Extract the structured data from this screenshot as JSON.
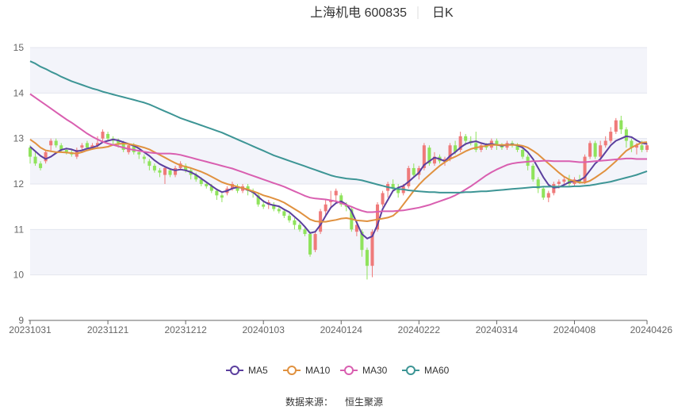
{
  "header": {
    "stock_name": "上海机电 600835",
    "period": "日K"
  },
  "source": {
    "label": "数据来源：",
    "provider": "恒生聚源"
  },
  "chart_data": {
    "type": "candlestick",
    "y_ticks": [
      "9",
      "10",
      "11",
      "12",
      "13",
      "14",
      "15"
    ],
    "ylim": [
      9,
      15
    ],
    "x_ticks": [
      "20231031",
      "20231121",
      "20231212",
      "20240103",
      "20240124",
      "20240222",
      "20240314",
      "20240408",
      "20240426"
    ],
    "x_tick_index": [
      0,
      15,
      30,
      45,
      60,
      75,
      90,
      105,
      119
    ],
    "grid": true,
    "legend_position": "bottom",
    "colors": {
      "up": "#ef7a7a",
      "down": "#8fe35c",
      "ma5": "#5b3f9e",
      "ma10": "#e0913f",
      "ma30": "#d95fb0",
      "ma60": "#3d9595",
      "band": "#f3f4fa",
      "grid": "#e3e6ef"
    },
    "candles": [
      [
        12.8,
        12.6,
        12.85,
        12.45
      ],
      [
        12.6,
        12.45,
        12.7,
        12.4
      ],
      [
        12.45,
        12.35,
        12.5,
        12.3
      ],
      [
        12.5,
        12.7,
        12.75,
        12.45
      ],
      [
        12.85,
        12.95,
        13.0,
        12.7
      ],
      [
        12.95,
        12.85,
        13.0,
        12.8
      ],
      [
        12.85,
        12.75,
        12.9,
        12.7
      ],
      [
        12.75,
        12.7,
        12.8,
        12.65
      ],
      [
        12.7,
        12.65,
        12.75,
        12.6
      ],
      [
        12.6,
        12.75,
        12.8,
        12.55
      ],
      [
        12.8,
        12.85,
        12.9,
        12.75
      ],
      [
        12.9,
        12.8,
        12.95,
        12.75
      ],
      [
        12.8,
        12.85,
        12.9,
        12.75
      ],
      [
        12.85,
        12.9,
        13.05,
        12.8
      ],
      [
        13.0,
        13.15,
        13.2,
        12.95
      ],
      [
        13.1,
        13.0,
        13.15,
        12.95
      ],
      [
        13.0,
        12.95,
        13.05,
        12.85
      ],
      [
        12.95,
        12.9,
        13.0,
        12.8
      ],
      [
        12.9,
        12.75,
        12.95,
        12.7
      ],
      [
        12.7,
        12.85,
        12.9,
        12.65
      ],
      [
        12.85,
        12.7,
        12.9,
        12.65
      ],
      [
        12.7,
        12.65,
        12.75,
        12.55
      ],
      [
        12.6,
        12.55,
        12.65,
        12.45
      ],
      [
        12.5,
        12.4,
        12.55,
        12.3
      ],
      [
        12.4,
        12.3,
        12.45,
        12.25
      ],
      [
        12.3,
        12.25,
        12.35,
        12.15
      ],
      [
        12.2,
        12.35,
        12.4,
        12.0
      ],
      [
        12.3,
        12.2,
        12.35,
        12.15
      ],
      [
        12.2,
        12.35,
        12.4,
        12.15
      ],
      [
        12.35,
        12.45,
        12.5,
        12.3
      ],
      [
        12.4,
        12.3,
        12.45,
        12.25
      ],
      [
        12.3,
        12.2,
        12.35,
        12.1
      ],
      [
        12.2,
        12.1,
        12.25,
        12.05
      ],
      [
        12.1,
        12.0,
        12.15,
        11.95
      ],
      [
        12.0,
        11.95,
        12.05,
        11.9
      ],
      [
        11.95,
        11.85,
        12.0,
        11.8
      ],
      [
        11.85,
        11.75,
        11.9,
        11.65
      ],
      [
        11.75,
        11.7,
        11.8,
        11.6
      ],
      [
        11.8,
        11.9,
        11.95,
        11.75
      ],
      [
        11.9,
        12.0,
        12.05,
        11.85
      ],
      [
        11.95,
        11.85,
        12.0,
        11.8
      ],
      [
        11.85,
        11.95,
        12.0,
        11.8
      ],
      [
        11.95,
        11.85,
        12.0,
        11.75
      ],
      [
        11.85,
        11.8,
        11.9,
        11.7
      ],
      [
        11.75,
        11.55,
        11.8,
        11.5
      ],
      [
        11.55,
        11.5,
        11.65,
        11.45
      ],
      [
        11.55,
        11.6,
        11.65,
        11.45
      ],
      [
        11.55,
        11.45,
        11.6,
        11.4
      ],
      [
        11.45,
        11.4,
        11.5,
        11.35
      ],
      [
        11.4,
        11.3,
        11.45,
        11.25
      ],
      [
        11.3,
        11.2,
        11.35,
        11.15
      ],
      [
        11.2,
        11.1,
        11.25,
        11.0
      ],
      [
        11.1,
        11.0,
        11.15,
        10.95
      ],
      [
        11.0,
        10.9,
        11.05,
        10.85
      ],
      [
        10.9,
        10.45,
        10.95,
        10.4
      ],
      [
        10.55,
        10.9,
        10.95,
        10.5
      ],
      [
        10.95,
        11.4,
        11.45,
        10.9
      ],
      [
        11.4,
        11.55,
        11.65,
        11.3
      ],
      [
        11.6,
        11.65,
        11.85,
        11.5
      ],
      [
        11.75,
        11.85,
        11.9,
        11.6
      ],
      [
        11.75,
        11.55,
        11.8,
        11.5
      ],
      [
        11.55,
        11.5,
        11.6,
        11.4
      ],
      [
        11.45,
        11.0,
        11.5,
        10.95
      ],
      [
        10.95,
        11.1,
        11.2,
        10.85
      ],
      [
        10.95,
        10.55,
        11.0,
        10.4
      ],
      [
        10.55,
        10.2,
        10.6,
        9.9
      ],
      [
        10.2,
        10.95,
        11.0,
        9.95
      ],
      [
        11.0,
        11.55,
        11.6,
        10.95
      ],
      [
        11.55,
        11.8,
        11.85,
        11.5
      ],
      [
        11.85,
        12.0,
        12.05,
        11.7
      ],
      [
        12.0,
        11.9,
        12.1,
        11.85
      ],
      [
        11.9,
        11.8,
        12.0,
        11.7
      ],
      [
        11.8,
        11.95,
        12.0,
        11.75
      ],
      [
        11.95,
        12.35,
        12.4,
        11.9
      ],
      [
        12.35,
        12.2,
        12.45,
        12.15
      ],
      [
        12.2,
        12.35,
        12.4,
        12.1
      ],
      [
        12.35,
        12.85,
        12.9,
        12.3
      ],
      [
        12.8,
        12.45,
        12.85,
        12.4
      ],
      [
        12.45,
        12.6,
        12.7,
        12.4
      ],
      [
        12.6,
        12.5,
        12.65,
        12.45
      ],
      [
        12.5,
        12.55,
        12.6,
        12.4
      ],
      [
        12.55,
        12.85,
        12.9,
        12.5
      ],
      [
        12.85,
        12.7,
        12.95,
        12.65
      ],
      [
        12.75,
        13.05,
        13.15,
        12.7
      ],
      [
        13.05,
        12.95,
        13.1,
        12.85
      ],
      [
        12.95,
        12.9,
        13.05,
        12.85
      ],
      [
        12.9,
        12.75,
        13.15,
        12.7
      ],
      [
        12.75,
        12.85,
        12.9,
        12.7
      ],
      [
        12.85,
        12.8,
        12.9,
        12.75
      ],
      [
        12.8,
        12.95,
        13.0,
        12.75
      ],
      [
        12.95,
        12.85,
        13.0,
        12.75
      ],
      [
        12.85,
        12.8,
        12.9,
        12.75
      ],
      [
        12.8,
        12.9,
        12.95,
        12.75
      ],
      [
        12.9,
        12.85,
        12.95,
        12.8
      ],
      [
        12.85,
        12.75,
        12.9,
        12.7
      ],
      [
        12.75,
        12.6,
        12.8,
        12.55
      ],
      [
        12.6,
        12.4,
        12.65,
        12.3
      ],
      [
        12.4,
        12.1,
        12.45,
        12.05
      ],
      [
        12.1,
        11.9,
        12.15,
        11.8
      ],
      [
        11.9,
        11.7,
        11.95,
        11.65
      ],
      [
        11.7,
        11.8,
        11.85,
        11.6
      ],
      [
        11.8,
        12.0,
        12.05,
        11.75
      ],
      [
        12.0,
        12.05,
        12.1,
        11.9
      ],
      [
        12.05,
        12.1,
        12.15,
        12.0
      ],
      [
        12.1,
        12.0,
        12.2,
        11.95
      ],
      [
        12.0,
        12.1,
        12.15,
        11.95
      ],
      [
        12.1,
        12.05,
        12.2,
        12.0
      ],
      [
        12.05,
        12.6,
        12.65,
        12.0
      ],
      [
        12.6,
        12.9,
        12.95,
        12.55
      ],
      [
        12.9,
        12.6,
        12.95,
        12.55
      ],
      [
        12.6,
        12.85,
        12.95,
        12.55
      ],
      [
        12.85,
        12.95,
        13.05,
        12.8
      ],
      [
        12.95,
        13.15,
        13.25,
        12.9
      ],
      [
        13.15,
        13.4,
        13.45,
        13.1
      ],
      [
        13.4,
        13.2,
        13.5,
        13.1
      ],
      [
        13.2,
        12.95,
        13.25,
        12.8
      ],
      [
        12.95,
        12.8,
        13.0,
        12.7
      ],
      [
        12.8,
        12.85,
        12.9,
        12.65
      ],
      [
        12.85,
        12.75,
        12.95,
        12.7
      ],
      [
        12.75,
        12.85,
        12.9,
        12.7
      ]
    ],
    "series": [
      {
        "name": "MA5",
        "values": [
          12.82,
          12.72,
          12.62,
          12.55,
          12.6,
          12.68,
          12.75,
          12.78,
          12.76,
          12.72,
          12.74,
          12.78,
          12.8,
          12.84,
          12.92,
          12.95,
          12.98,
          12.96,
          12.92,
          12.88,
          12.84,
          12.78,
          12.7,
          12.62,
          12.52,
          12.44,
          12.38,
          12.33,
          12.3,
          12.32,
          12.3,
          12.26,
          12.2,
          12.12,
          12.04,
          11.96,
          11.88,
          11.82,
          11.85,
          11.9,
          11.93,
          11.91,
          11.87,
          11.82,
          11.72,
          11.62,
          11.56,
          11.53,
          11.51,
          11.44,
          11.38,
          11.28,
          11.18,
          11.06,
          10.92,
          10.95,
          11.1,
          11.3,
          11.48,
          11.58,
          11.62,
          11.55,
          11.4,
          11.15,
          10.9,
          10.8,
          10.85,
          11.1,
          11.45,
          11.65,
          11.85,
          11.92,
          11.96,
          12.05,
          12.15,
          12.25,
          12.42,
          12.5,
          12.58,
          12.55,
          12.5,
          12.62,
          12.7,
          12.8,
          12.88,
          12.92,
          12.94,
          12.9,
          12.87,
          12.88,
          12.86,
          12.84,
          12.86,
          12.87,
          12.85,
          12.8,
          12.7,
          12.55,
          12.35,
          12.15,
          11.98,
          11.92,
          11.93,
          11.98,
          12.04,
          12.06,
          12.08,
          12.15,
          12.3,
          12.45,
          12.55,
          12.7,
          12.85,
          12.95,
          13.0,
          13.05,
          13.03,
          12.96,
          12.9,
          12.88
        ]
      },
      {
        "name": "MA10",
        "values": [
          12.98,
          12.9,
          12.8,
          12.74,
          12.72,
          12.7,
          12.7,
          12.69,
          12.68,
          12.67,
          12.7,
          12.74,
          12.77,
          12.79,
          12.8,
          12.82,
          12.86,
          12.88,
          12.89,
          12.88,
          12.86,
          12.83,
          12.8,
          12.76,
          12.7,
          12.64,
          12.58,
          12.52,
          12.46,
          12.41,
          12.38,
          12.35,
          12.31,
          12.27,
          12.22,
          12.16,
          12.1,
          12.04,
          12.0,
          11.97,
          11.94,
          11.91,
          11.88,
          11.84,
          11.8,
          11.75,
          11.72,
          11.68,
          11.64,
          11.59,
          11.52,
          11.45,
          11.38,
          11.3,
          11.22,
          11.18,
          11.17,
          11.17,
          11.19,
          11.21,
          11.24,
          11.25,
          11.23,
          11.2,
          11.19,
          11.18,
          11.2,
          11.22,
          11.24,
          11.26,
          11.3,
          11.4,
          11.55,
          11.7,
          11.85,
          11.98,
          12.1,
          12.2,
          12.3,
          12.4,
          12.48,
          12.55,
          12.6,
          12.66,
          12.72,
          12.77,
          12.8,
          12.82,
          12.84,
          12.86,
          12.86,
          12.86,
          12.86,
          12.86,
          12.86,
          12.84,
          12.8,
          12.73,
          12.65,
          12.55,
          12.45,
          12.35,
          12.25,
          12.16,
          12.1,
          12.06,
          12.03,
          12.03,
          12.07,
          12.14,
          12.22,
          12.3,
          12.4,
          12.5,
          12.62,
          12.73,
          12.8,
          12.86,
          12.91,
          12.92
        ]
      },
      {
        "name": "MA30",
        "values": [
          13.98,
          13.9,
          13.82,
          13.74,
          13.66,
          13.58,
          13.5,
          13.42,
          13.35,
          13.27,
          13.19,
          13.11,
          13.04,
          12.98,
          12.93,
          12.89,
          12.86,
          12.83,
          12.8,
          12.77,
          12.75,
          12.73,
          12.71,
          12.69,
          12.68,
          12.67,
          12.67,
          12.67,
          12.66,
          12.64,
          12.61,
          12.58,
          12.55,
          12.52,
          12.49,
          12.46,
          12.43,
          12.4,
          12.37,
          12.34,
          12.3,
          12.26,
          12.22,
          12.18,
          12.14,
          12.1,
          12.06,
          12.02,
          11.98,
          11.94,
          11.89,
          11.84,
          11.79,
          11.74,
          11.7,
          11.68,
          11.67,
          11.66,
          11.64,
          11.62,
          11.58,
          11.54,
          11.5,
          11.45,
          11.41,
          11.38,
          11.38,
          11.39,
          11.4,
          11.4,
          11.4,
          11.41,
          11.42,
          11.44,
          11.46,
          11.48,
          11.51,
          11.54,
          11.58,
          11.62,
          11.66,
          11.7,
          11.75,
          11.81,
          11.88,
          11.95,
          12.03,
          12.11,
          12.19,
          12.26,
          12.32,
          12.37,
          12.42,
          12.45,
          12.47,
          12.48,
          12.49,
          12.5,
          12.5,
          12.51,
          12.51,
          12.5,
          12.5,
          12.5,
          12.5,
          12.49,
          12.48,
          12.48,
          12.49,
          12.5,
          12.51,
          12.52,
          12.53,
          12.54,
          12.55,
          12.56,
          12.56,
          12.55,
          12.55,
          12.55
        ]
      },
      {
        "name": "MA60",
        "values": [
          14.7,
          14.65,
          14.58,
          14.53,
          14.47,
          14.42,
          14.36,
          14.31,
          14.26,
          14.22,
          14.18,
          14.14,
          14.1,
          14.07,
          14.03,
          14.0,
          13.97,
          13.94,
          13.91,
          13.88,
          13.85,
          13.82,
          13.79,
          13.75,
          13.7,
          13.65,
          13.6,
          13.55,
          13.5,
          13.45,
          13.41,
          13.37,
          13.33,
          13.29,
          13.25,
          13.21,
          13.17,
          13.13,
          13.08,
          13.03,
          12.98,
          12.93,
          12.88,
          12.83,
          12.78,
          12.73,
          12.68,
          12.63,
          12.59,
          12.55,
          12.51,
          12.47,
          12.43,
          12.39,
          12.35,
          12.31,
          12.27,
          12.23,
          12.19,
          12.16,
          12.14,
          12.12,
          12.11,
          12.1,
          12.08,
          12.05,
          12.02,
          11.99,
          11.96,
          11.93,
          11.91,
          11.89,
          11.88,
          11.86,
          11.85,
          11.84,
          11.83,
          11.82,
          11.82,
          11.81,
          11.81,
          11.81,
          11.81,
          11.81,
          11.82,
          11.82,
          11.83,
          11.84,
          11.84,
          11.85,
          11.86,
          11.87,
          11.88,
          11.89,
          11.9,
          11.91,
          11.92,
          11.93,
          11.93,
          11.94,
          11.94,
          11.94,
          11.94,
          11.94,
          11.94,
          11.95,
          11.95,
          11.96,
          11.97,
          11.99,
          12.01,
          12.03,
          12.05,
          12.08,
          12.11,
          12.14,
          12.17,
          12.2,
          12.24,
          12.28
        ]
      }
    ]
  }
}
